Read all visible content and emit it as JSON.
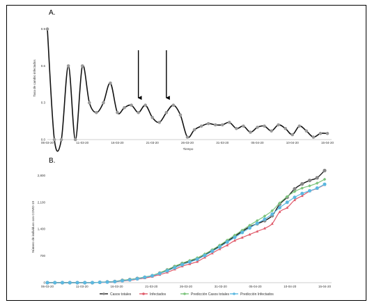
{
  "chart_data": [
    {
      "type": "line",
      "panel_label": "A.",
      "xlabel": "Tiempo",
      "ylabel": "Tasa de cambio infectados",
      "x_ticks": [
        "06-03-20",
        "11-03-20",
        "16-03-20",
        "21-03-20",
        "26-03-20",
        "31-03-20",
        "05-04-20",
        "10-04-20",
        "15-04-20"
      ],
      "y_ticks": [
        "0.9",
        "0.6",
        "0.3",
        "0.0"
      ],
      "ylim": [
        0,
        1.0
      ],
      "values": [
        0.9,
        0.0,
        0.0,
        0.6,
        0.0,
        0.6,
        0.3,
        0.22,
        0.3,
        0.46,
        0.22,
        0.26,
        0.28,
        0.22,
        0.28,
        0.18,
        0.14,
        0.22,
        0.28,
        0.2,
        0.02,
        0.08,
        0.11,
        0.13,
        0.12,
        0.12,
        0.14,
        0.09,
        0.11,
        0.06,
        0.1,
        0.11,
        0.07,
        0.12,
        0.09,
        0.04,
        0.11,
        0.07,
        0.02,
        0.05,
        0.05
      ],
      "annotations": [
        {
          "type": "arrow",
          "x_index": 13,
          "value": 0.3
        },
        {
          "type": "arrow",
          "x_index": 17,
          "value": 0.3
        }
      ],
      "grid": false
    },
    {
      "type": "line",
      "panel_label": "B.",
      "xlabel": "",
      "ylabel": "Número de individuos con COVID-19",
      "x_ticks": [
        "06-03-20",
        "11-03-20",
        "16-03-20",
        "21-03-20",
        "26-03-20",
        "31-03-20",
        "05-04-20",
        "10-04-20",
        "15-04-20"
      ],
      "y_ticks": [
        "2,800",
        "2,100",
        "1,400",
        "700",
        "0"
      ],
      "ylim": [
        0,
        3100
      ],
      "legend": "bottom",
      "series": [
        {
          "name": "Casos totales",
          "color": "#1a1a1a",
          "marker_color": "#888888",
          "values": [
            0,
            0,
            0,
            0,
            0,
            0,
            0,
            10,
            20,
            30,
            60,
            80,
            110,
            140,
            180,
            250,
            330,
            420,
            500,
            560,
            620,
            720,
            840,
            960,
            1080,
            1210,
            1340,
            1460,
            1540,
            1620,
            1750,
            2050,
            2230,
            2450,
            2580,
            2670,
            2740,
            2930
          ]
        },
        {
          "name": "Infectados",
          "color": "#e05a6a",
          "marker_color": "#e05a6a",
          "values": [
            0,
            0,
            0,
            0,
            0,
            0,
            0,
            5,
            10,
            20,
            40,
            60,
            90,
            120,
            160,
            210,
            270,
            350,
            430,
            490,
            550,
            660,
            770,
            880,
            980,
            1100,
            1180,
            1260,
            1340,
            1420,
            1540,
            1850,
            1960,
            2160,
            2270,
            2390,
            2460,
            2560
          ]
        },
        {
          "name": "Predicción Casos totales",
          "color": "#7cc47c",
          "marker_color": "#7cc47c",
          "values": [
            0,
            0,
            0,
            0,
            0,
            0,
            0,
            10,
            20,
            30,
            60,
            80,
            110,
            150,
            190,
            260,
            340,
            430,
            510,
            580,
            650,
            750,
            860,
            980,
            1110,
            1240,
            1370,
            1500,
            1620,
            1740,
            1880,
            2080,
            2250,
            2380,
            2470,
            2530,
            2600,
            2700
          ]
        },
        {
          "name": "Predicción Infectados",
          "color": "#5bb8e0",
          "marker_color": "#5bb8e0",
          "values": [
            0,
            0,
            0,
            0,
            0,
            0,
            0,
            8,
            15,
            25,
            50,
            70,
            100,
            140,
            180,
            240,
            310,
            390,
            470,
            540,
            610,
            710,
            820,
            930,
            1060,
            1180,
            1310,
            1430,
            1550,
            1660,
            1790,
            1960,
            2100,
            2230,
            2330,
            2400,
            2470,
            2570
          ]
        }
      ],
      "grid": false
    }
  ]
}
